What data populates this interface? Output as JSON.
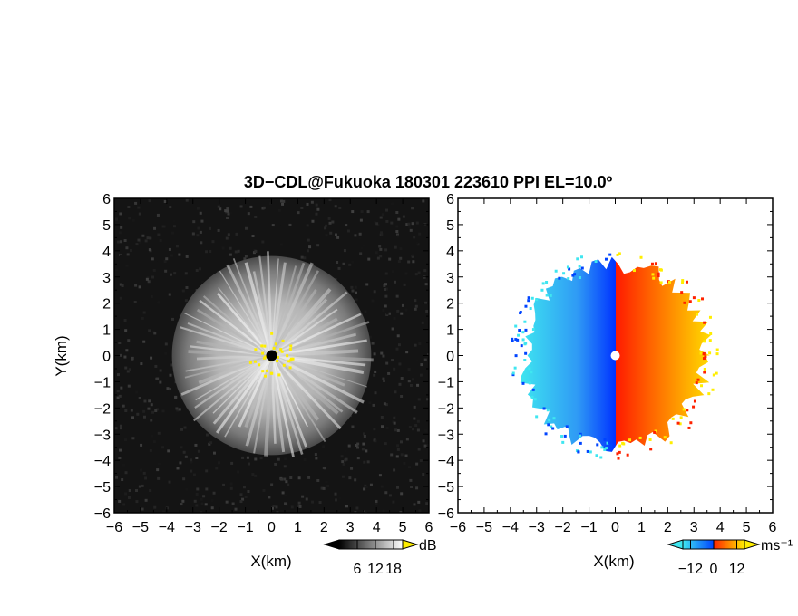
{
  "title": "3D−CDL@Fukuoka 180301 223610 PPI EL=10.0º",
  "chart_data": [
    {
      "type": "heatmap",
      "panel": "left",
      "xlabel": "X(km)",
      "ylabel": "Y(km)",
      "xlim": [
        -6,
        6
      ],
      "ylim": [
        -6,
        6
      ],
      "xticks": [
        "−6",
        "−5",
        "−4",
        "−3",
        "−2",
        "−1",
        "0",
        "1",
        "2",
        "3",
        "4",
        "5",
        "6"
      ],
      "yticks": [
        "−6",
        "−5",
        "−4",
        "−3",
        "−2",
        "−1",
        "0",
        "1",
        "2",
        "3",
        "4",
        "5",
        "6"
      ],
      "field": "SNR",
      "echo_radius_km": 3.8,
      "background": "#141414",
      "colorbar": {
        "unit": "dB",
        "ticks": [
          "6",
          "12",
          "18"
        ],
        "min": 0,
        "max": 21,
        "colors": [
          "#000000",
          "#ffffff"
        ],
        "extend_high_color": "#ffee00"
      },
      "radar_marker": {
        "x": 0,
        "y": 0,
        "color": "#000000"
      }
    },
    {
      "type": "heatmap",
      "panel": "right",
      "xlabel": "X(km)",
      "ylabel": "",
      "xlim": [
        -6,
        6
      ],
      "ylim": [
        -6,
        6
      ],
      "xticks": [
        "−6",
        "−5",
        "−4",
        "−3",
        "−2",
        "−1",
        "0",
        "1",
        "2",
        "3",
        "4",
        "5",
        "6"
      ],
      "yticks": [
        "−6",
        "−5",
        "−4",
        "−3",
        "−2",
        "−1",
        "0",
        "1",
        "2",
        "3",
        "4",
        "5",
        "6"
      ],
      "field": "Doppler velocity",
      "echo_radius_km": 3.8,
      "background": "#ffffff",
      "colorbar": {
        "unit": "ms⁻¹",
        "ticks": [
          "−12",
          "0",
          "12"
        ],
        "min": -16,
        "max": 16,
        "colors": [
          "#3fe6f0",
          "#0044ff",
          "#ff2200",
          "#ffee00"
        ]
      },
      "radar_marker": {
        "x": 0,
        "y": 0,
        "color": "#ffffff"
      }
    }
  ]
}
